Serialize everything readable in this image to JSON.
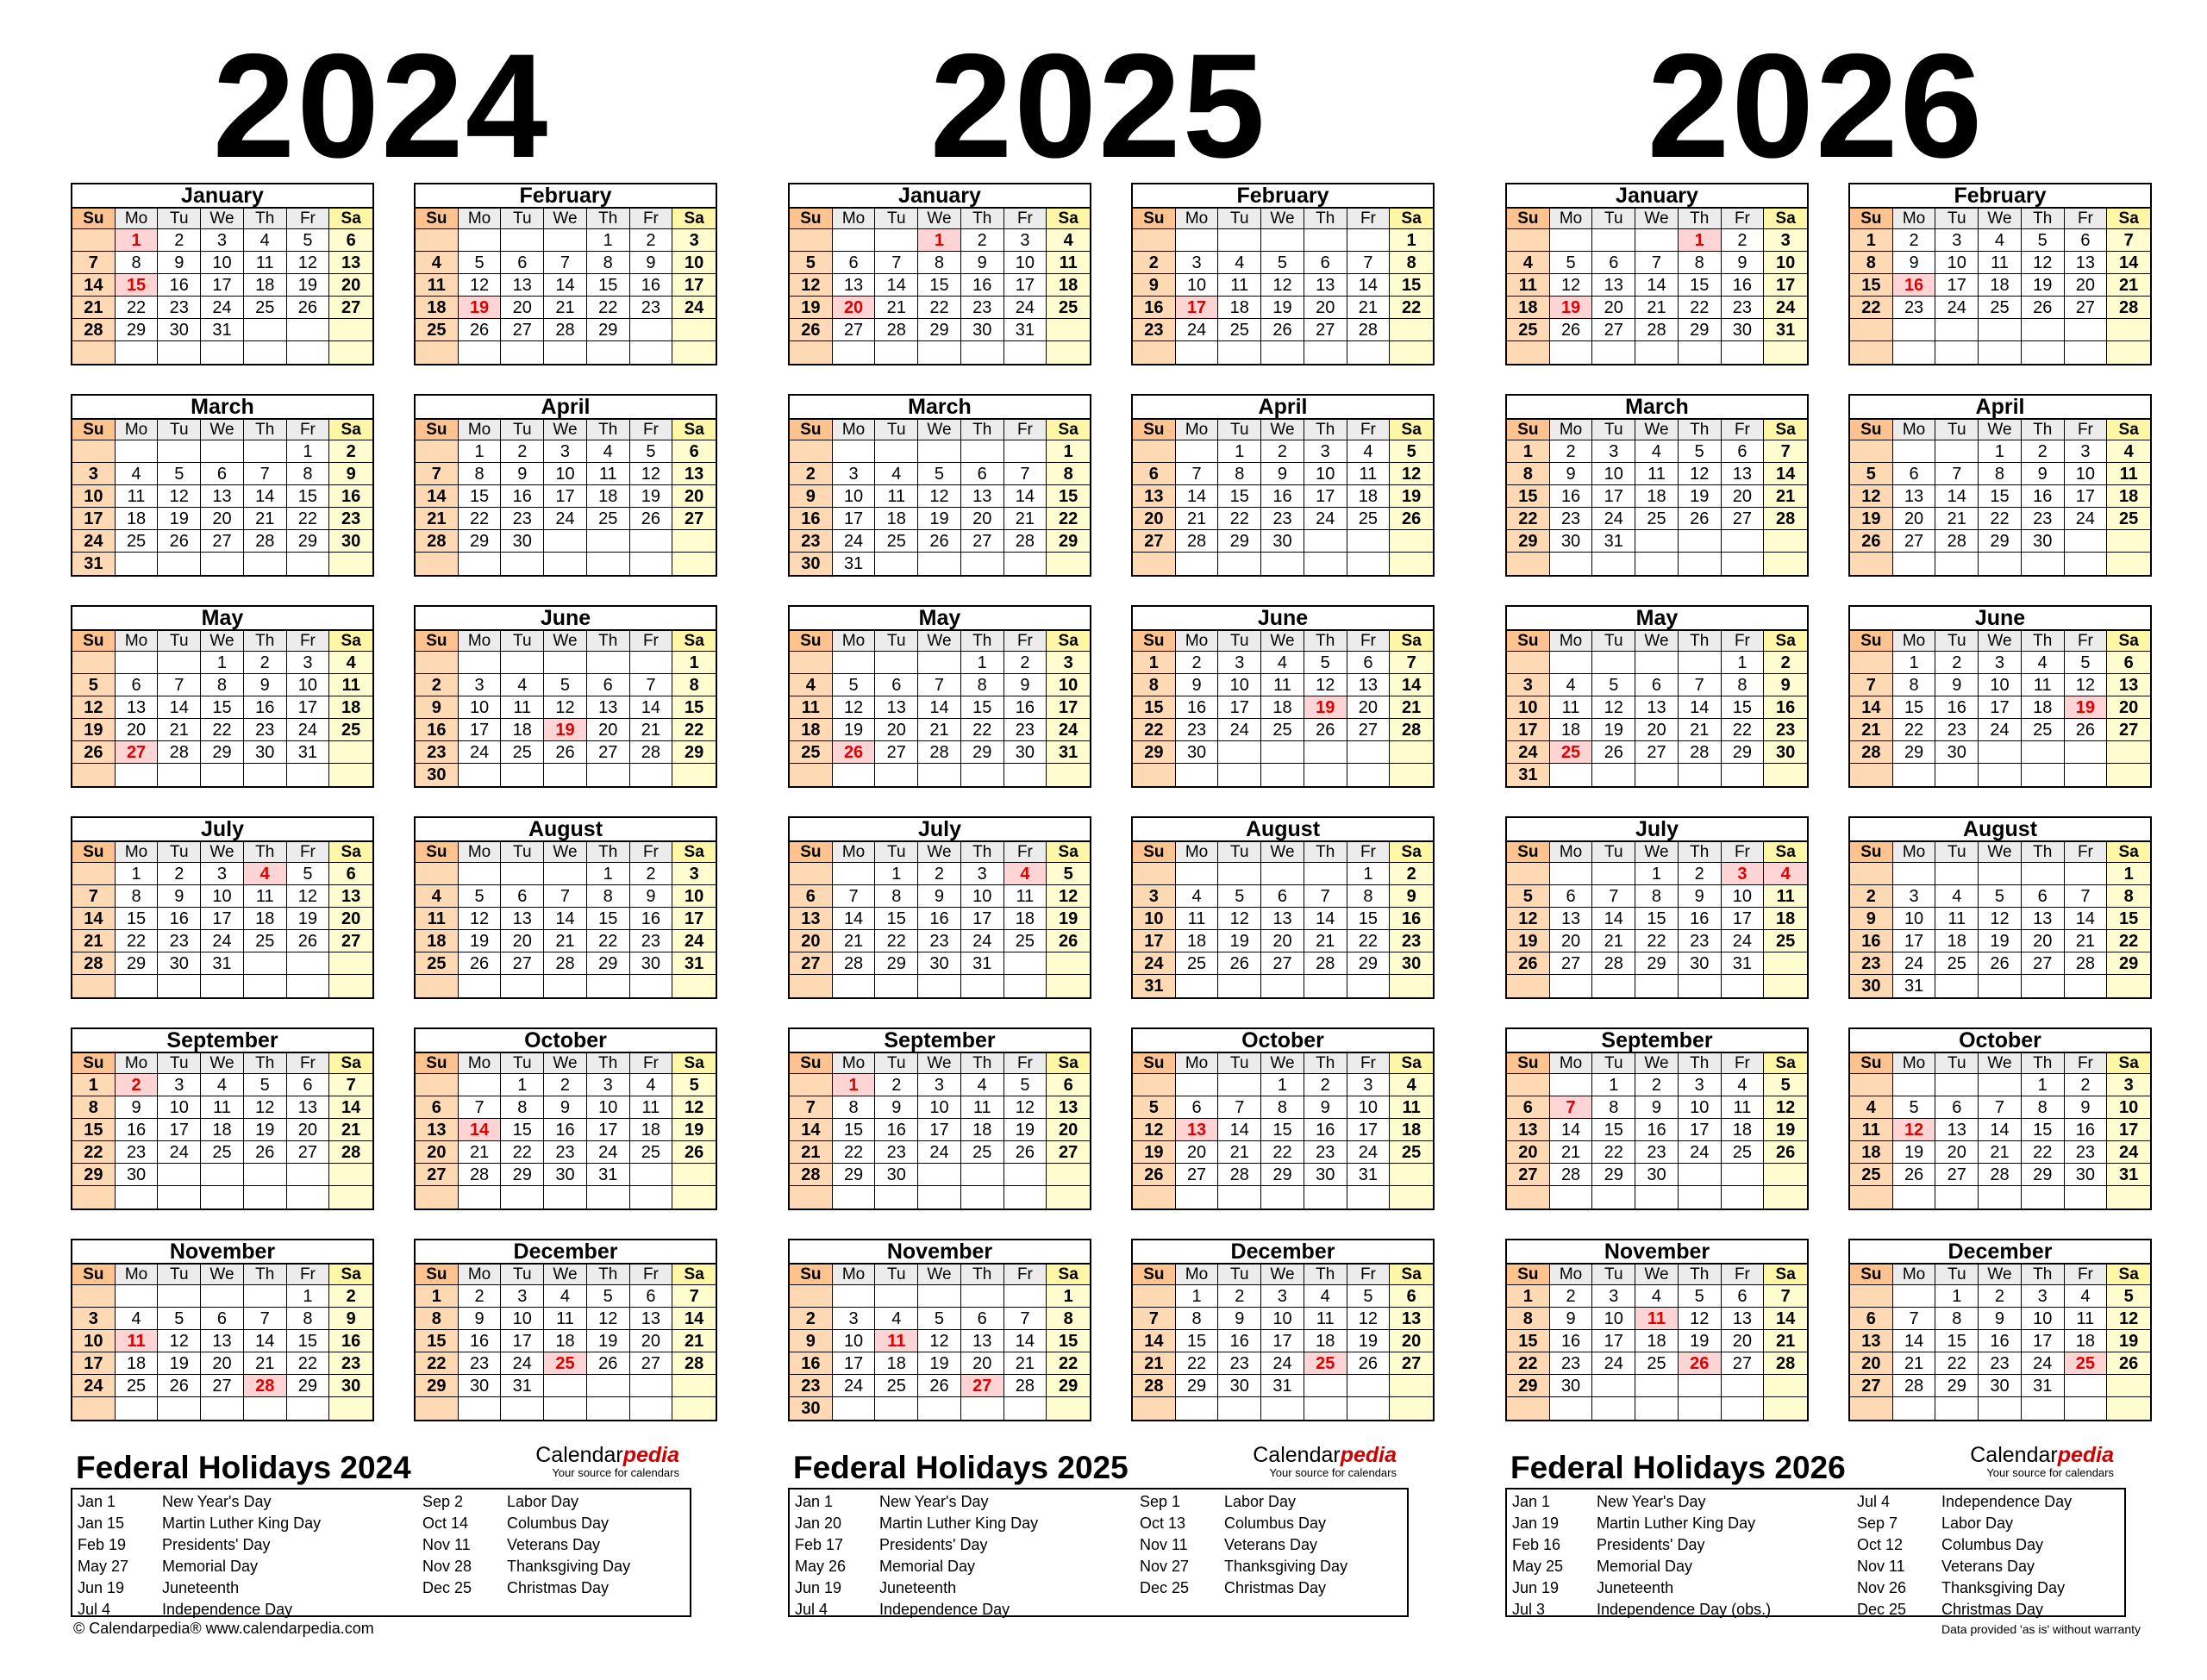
{
  "dow": [
    "Su",
    "Mo",
    "Tu",
    "We",
    "Th",
    "Fr",
    "Sa"
  ],
  "month_names": [
    "January",
    "February",
    "March",
    "April",
    "May",
    "June",
    "July",
    "August",
    "September",
    "October",
    "November",
    "December"
  ],
  "years": [
    {
      "year": "2024",
      "first_weekday": [
        1,
        4,
        5,
        1,
        3,
        6,
        1,
        4,
        0,
        2,
        5,
        0
      ],
      "days_in_month": [
        31,
        29,
        31,
        30,
        31,
        30,
        31,
        31,
        30,
        31,
        30,
        31
      ],
      "highlighted_days": {
        "1": [
          1,
          15
        ],
        "2": [
          19
        ],
        "5": [
          27
        ],
        "6": [
          19
        ],
        "7": [
          4
        ],
        "9": [
          2
        ],
        "10": [
          14
        ],
        "11": [
          11,
          28
        ],
        "12": [
          25
        ]
      },
      "holidays_title": "Federal Holidays 2024",
      "holidays": [
        {
          "date": "Jan 1",
          "name": "New Year's Day"
        },
        {
          "date": "Jan 15",
          "name": "Martin Luther King Day"
        },
        {
          "date": "Feb 19",
          "name": "Presidents' Day"
        },
        {
          "date": "May 27",
          "name": "Memorial Day"
        },
        {
          "date": "Jun 19",
          "name": "Juneteenth"
        },
        {
          "date": "Jul 4",
          "name": "Independence Day"
        },
        {
          "date": "Sep 2",
          "name": "Labor Day"
        },
        {
          "date": "Oct 14",
          "name": "Columbus Day"
        },
        {
          "date": "Nov 11",
          "name": "Veterans Day"
        },
        {
          "date": "Nov 28",
          "name": "Thanksgiving Day"
        },
        {
          "date": "Dec 25",
          "name": "Christmas Day"
        }
      ]
    },
    {
      "year": "2025",
      "first_weekday": [
        3,
        6,
        6,
        2,
        4,
        0,
        2,
        5,
        1,
        3,
        6,
        1
      ],
      "days_in_month": [
        31,
        28,
        31,
        30,
        31,
        30,
        31,
        31,
        30,
        31,
        30,
        31
      ],
      "highlighted_days": {
        "1": [
          1,
          20
        ],
        "2": [
          17
        ],
        "5": [
          26
        ],
        "6": [
          19
        ],
        "7": [
          4
        ],
        "9": [
          1
        ],
        "10": [
          13
        ],
        "11": [
          11,
          27
        ],
        "12": [
          25
        ]
      },
      "holidays_title": "Federal Holidays 2025",
      "holidays": [
        {
          "date": "Jan 1",
          "name": "New Year's Day"
        },
        {
          "date": "Jan 20",
          "name": "Martin Luther King Day"
        },
        {
          "date": "Feb 17",
          "name": "Presidents' Day"
        },
        {
          "date": "May 26",
          "name": "Memorial Day"
        },
        {
          "date": "Jun 19",
          "name": "Juneteenth"
        },
        {
          "date": "Jul 4",
          "name": "Independence Day"
        },
        {
          "date": "Sep 1",
          "name": "Labor Day"
        },
        {
          "date": "Oct 13",
          "name": "Columbus Day"
        },
        {
          "date": "Nov 11",
          "name": "Veterans Day"
        },
        {
          "date": "Nov 27",
          "name": "Thanksgiving Day"
        },
        {
          "date": "Dec 25",
          "name": "Christmas Day"
        }
      ]
    },
    {
      "year": "2026",
      "first_weekday": [
        4,
        0,
        0,
        3,
        5,
        1,
        3,
        6,
        2,
        4,
        0,
        2
      ],
      "days_in_month": [
        31,
        28,
        31,
        30,
        31,
        30,
        31,
        31,
        30,
        31,
        30,
        31
      ],
      "highlighted_days": {
        "1": [
          1,
          19
        ],
        "2": [
          16
        ],
        "5": [
          25
        ],
        "6": [
          19
        ],
        "7": [
          3,
          4
        ],
        "9": [
          7
        ],
        "10": [
          12
        ],
        "11": [
          11,
          26
        ],
        "12": [
          25
        ]
      },
      "holidays_title": "Federal Holidays 2026",
      "holidays": [
        {
          "date": "Jan 1",
          "name": "New Year's Day"
        },
        {
          "date": "Jan 19",
          "name": "Martin Luther King Day"
        },
        {
          "date": "Feb 16",
          "name": "Presidents' Day"
        },
        {
          "date": "May 25",
          "name": "Memorial Day"
        },
        {
          "date": "Jun 19",
          "name": "Juneteenth"
        },
        {
          "date": "Jul 3",
          "name": "Independence Day (obs.)"
        },
        {
          "date": "Jul 4",
          "name": "Independence Day"
        },
        {
          "date": "Sep 7",
          "name": "Labor Day"
        },
        {
          "date": "Oct 12",
          "name": "Columbus Day"
        },
        {
          "date": "Nov 11",
          "name": "Veterans Day"
        },
        {
          "date": "Nov 26",
          "name": "Thanksgiving Day"
        },
        {
          "date": "Dec 25",
          "name": "Christmas Day"
        }
      ]
    }
  ],
  "brand": {
    "name_part1": "Calendar",
    "name_part2": "pedia",
    "tagline": "Your source for calendars"
  },
  "footer": {
    "left": "© Calendarpedia®   www.calendarpedia.com",
    "right": "Data provided 'as is' without warranty"
  }
}
